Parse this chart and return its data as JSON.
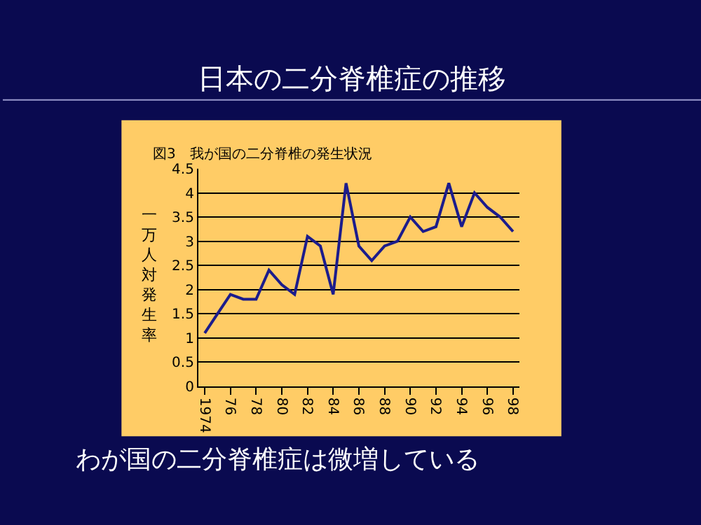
{
  "chart_data": {
    "type": "line",
    "title": "日本の二分脊椎症の推移",
    "subtitle": "図3　我が国の二分脊椎の発生状況",
    "ylabel": "一万人対発生率",
    "categories": [
      "1974",
      null,
      "76",
      null,
      "78",
      null,
      "80",
      null,
      "82",
      null,
      "84",
      null,
      "86",
      null,
      "88",
      null,
      "90",
      null,
      "92",
      null,
      "94",
      null,
      "96",
      null,
      "98"
    ],
    "series": [
      {
        "color": "#1c1c8c",
        "values": [
          1.1,
          1.5,
          1.9,
          1.8,
          1.8,
          2.4,
          2.1,
          1.9,
          3.1,
          2.9,
          1.9,
          4.2,
          2.9,
          2.6,
          2.9,
          3.0,
          3.5,
          3.2,
          3.3,
          4.2,
          3.3,
          4.0,
          3.7,
          3.5,
          3.2
        ]
      }
    ],
    "ylim": [
      0,
      4.5
    ],
    "yticks": [
      0,
      0.5,
      1,
      1.5,
      2,
      2.5,
      3,
      3.5,
      4,
      4.5
    ],
    "grid": "y",
    "marker": "none",
    "line_style": "solid",
    "annotations": [
      "わが国の二分脊椎症は微増している"
    ]
  }
}
